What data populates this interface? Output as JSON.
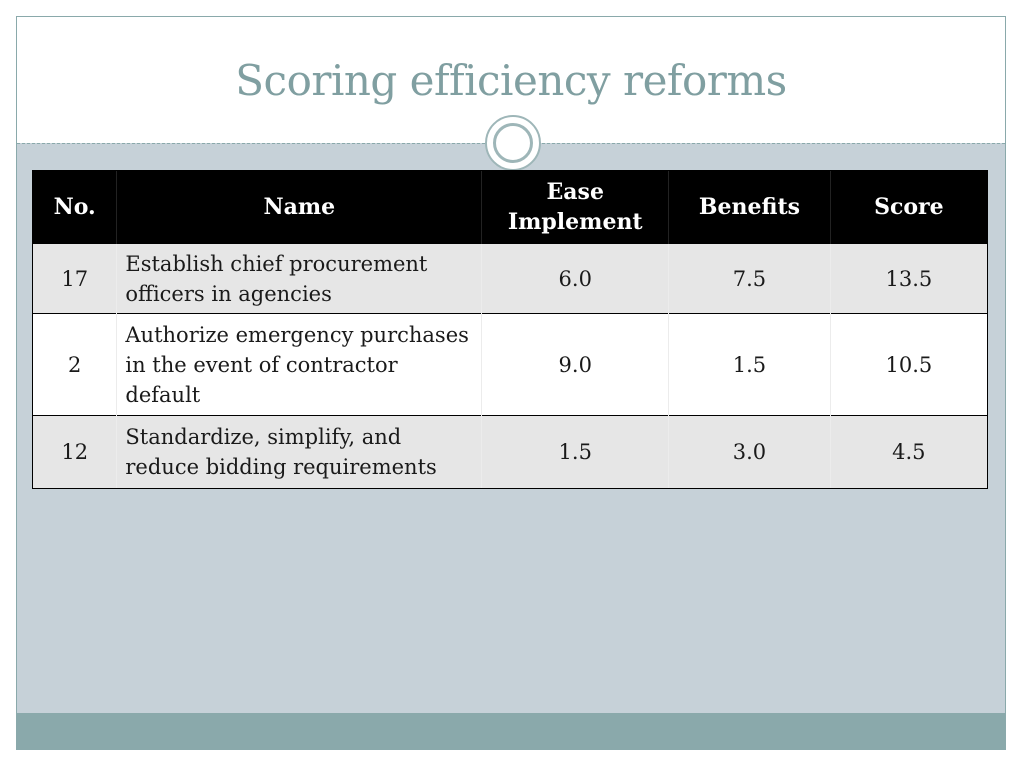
{
  "slide": {
    "title": "Scoring efficiency reforms"
  },
  "table": {
    "headers": {
      "no": "No.",
      "name": "Name",
      "ease_line1": "Ease",
      "ease_line2": "Implement",
      "benefits": "Benefits",
      "score": "Score"
    },
    "rows": [
      {
        "no": "17",
        "name": "Establish chief procurement officers in agencies",
        "ease": "6.0",
        "benefits": "7.5",
        "score": "13.5"
      },
      {
        "no": "2",
        "name": "Authorize emergency purchases in the event of contractor default",
        "ease": "9.0",
        "benefits": "1.5",
        "score": "10.5"
      },
      {
        "no": "12",
        "name": "Standardize, simplify, and reduce bidding requirements",
        "ease": "1.5",
        "benefits": "3.0",
        "score": "4.5"
      }
    ]
  },
  "colors": {
    "title": "#809fa1",
    "background": "#c6d1d8",
    "footer": "#8aa9ab",
    "header_bg": "#000000",
    "row_alt": "#e6e6e6"
  }
}
